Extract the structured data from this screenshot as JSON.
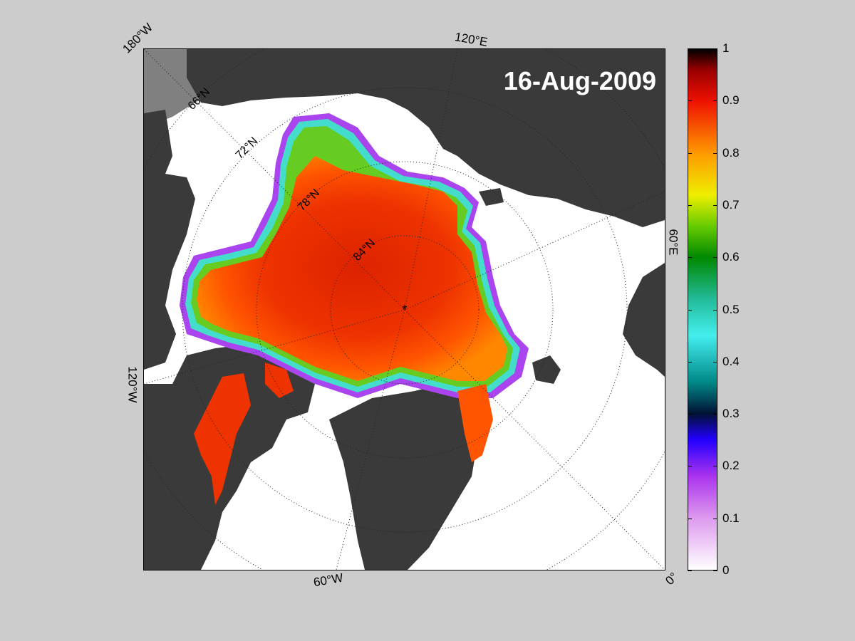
{
  "map": {
    "date_title": "16-Aug-2009",
    "projection": "north polar stereographic",
    "variable": "sea ice concentration",
    "edge_labels": {
      "top_left": "180°W",
      "top": "120°E",
      "right": "60°E",
      "bottom_right": "0°",
      "bottom": "60°W",
      "left": "120°W"
    },
    "latitude_labels": [
      "66°N",
      "72°N",
      "78°N",
      "84°N"
    ],
    "pole_marker": "*",
    "colors": {
      "land": "#3a3a3a",
      "open_water": "#ffffff",
      "no_data": "#808080",
      "figure_background": "#cccccc"
    }
  },
  "colorbar": {
    "ticks": [
      "0",
      "0.1",
      "0.2",
      "0.3",
      "0.4",
      "0.5",
      "0.6",
      "0.7",
      "0.8",
      "0.9",
      "1"
    ],
    "range": [
      0,
      1
    ],
    "colormap": [
      [
        0.0,
        "#ffffff"
      ],
      [
        0.1,
        "#dd99ee"
      ],
      [
        0.18,
        "#aa33ee"
      ],
      [
        0.25,
        "#2200ff"
      ],
      [
        0.3,
        "#001133"
      ],
      [
        0.36,
        "#008888"
      ],
      [
        0.45,
        "#44eeee"
      ],
      [
        0.52,
        "#22bb99"
      ],
      [
        0.6,
        "#008800"
      ],
      [
        0.66,
        "#66cc00"
      ],
      [
        0.72,
        "#eeee00"
      ],
      [
        0.8,
        "#ff9900"
      ],
      [
        0.9,
        "#ee1100"
      ],
      [
        0.96,
        "#990000"
      ],
      [
        1.0,
        "#000000"
      ]
    ]
  }
}
